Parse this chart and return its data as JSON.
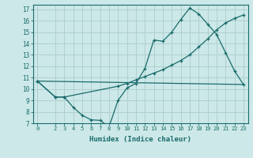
{
  "xlabel": "Humidex (Indice chaleur)",
  "bg_color": "#cce8e8",
  "line_color": "#1a6b6b",
  "grid_color": "#b0d0d0",
  "xlim": [
    -0.5,
    23.5
  ],
  "ylim": [
    7,
    17.4
  ],
  "yticks": [
    7,
    8,
    9,
    10,
    11,
    12,
    13,
    14,
    15,
    16,
    17
  ],
  "xticks": [
    0,
    2,
    3,
    4,
    5,
    6,
    7,
    8,
    9,
    10,
    11,
    12,
    13,
    14,
    15,
    16,
    17,
    18,
    19,
    20,
    21,
    22,
    23
  ],
  "line1_x": [
    0,
    2,
    3,
    4,
    5,
    6,
    7,
    8,
    9,
    10,
    11,
    12,
    13,
    14,
    15,
    16,
    17,
    18,
    19,
    20,
    21,
    22,
    23
  ],
  "line1_y": [
    10.7,
    9.3,
    9.3,
    8.4,
    7.7,
    7.3,
    7.25,
    6.7,
    9.0,
    10.1,
    10.5,
    11.8,
    14.3,
    14.2,
    15.0,
    16.1,
    17.1,
    16.6,
    15.7,
    14.8,
    13.2,
    11.6,
    10.4
  ],
  "line2_x": [
    0,
    2,
    3,
    9,
    10,
    11,
    12,
    13,
    14,
    15,
    16,
    17,
    18,
    19,
    20,
    21,
    22,
    23
  ],
  "line2_y": [
    10.7,
    9.3,
    9.3,
    10.25,
    10.5,
    10.8,
    11.1,
    11.4,
    11.7,
    12.1,
    12.5,
    13.0,
    13.7,
    14.4,
    15.2,
    15.8,
    16.2,
    16.5
  ],
  "line3_x": [
    0,
    23
  ],
  "line3_y": [
    10.7,
    10.4
  ]
}
